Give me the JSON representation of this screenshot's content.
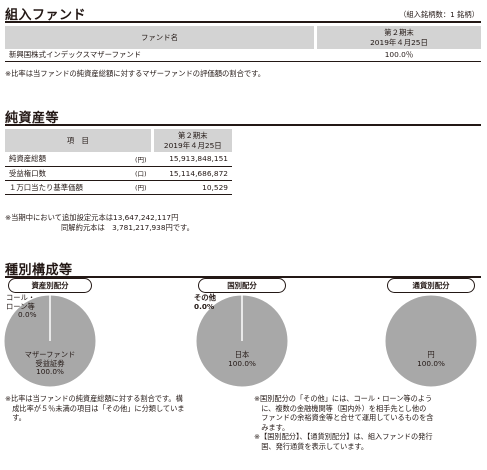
{
  "sections": {
    "fund": {
      "title": "組入ファンド",
      "count_note": "（組入銘柄数：1 銘柄）",
      "header": {
        "name": "ファンド名",
        "period": "第２期末",
        "date": "2019年４月25日"
      },
      "rows": [
        {
          "name": "新興国株式インデックスマザーファンド",
          "value": "100.0％"
        }
      ],
      "note": "※比率は当ファンドの純資産総額に対するマザーファンドの評価額の割合です。"
    },
    "net_assets": {
      "title": "純資産等",
      "header": {
        "item": "項　目",
        "period": "第２期末",
        "date": "2019年４月25日"
      },
      "rows": [
        {
          "label": "純資産総額",
          "unit": "(円)",
          "value": "15,913,848,151"
        },
        {
          "label": "受益権口数",
          "unit": "(口)",
          "value": "15,114,686,872"
        },
        {
          "label": "１万口当たり基準価額",
          "unit": "(円)",
          "value": "10,529"
        }
      ],
      "note1": "※当期中において追加設定元本は13,647,242,117円",
      "note2": "同解約元本は　3,781,217,938円です。"
    },
    "composition": {
      "title": "種別構成等",
      "charts": [
        {
          "label": "資産別配分",
          "slices": [
            {
              "name_line1": "コール・",
              "name_line2": "ローン等",
              "value": "0.0%",
              "pct": 0.0
            },
            {
              "name_line1": "マザーファンド",
              "name_line2": "受益証券",
              "value": "100.0%",
              "pct": 100.0
            }
          ]
        },
        {
          "label": "国別配分",
          "slices": [
            {
              "name": "その他",
              "value": "0.0%",
              "pct": 0.0
            },
            {
              "name": "日本",
              "value": "100.0%",
              "pct": 100.0
            }
          ]
        },
        {
          "label": "通貨別配分",
          "slices": [
            {
              "name": "円",
              "value": "100.0%",
              "pct": 100.0
            }
          ]
        }
      ],
      "note_left_1": "※比率は当ファンドの純資産総額に対する割合です。構",
      "note_left_2": "　成比率が５％未満の項目は「その他」に分類していま",
      "note_left_3": "　す。",
      "note_right_1": "※国別配分の「その他」には、コール・ローン等のよう",
      "note_right_2": "　に、複数の金融機関等（国内外）を相手先とし他の",
      "note_right_3": "　ファンドの余裕資金等と合せて運用しているものを含",
      "note_right_4": "　みます。",
      "note_right_5": "※【国別配分】、【通貨別配分】は、組入ファンドの発行",
      "note_right_6": "　国、発行通貨を表示しています。"
    }
  },
  "colors": {
    "pie_fill": "#a8a8a8",
    "header_fill": "#d3d3d3",
    "line": "#231815"
  }
}
